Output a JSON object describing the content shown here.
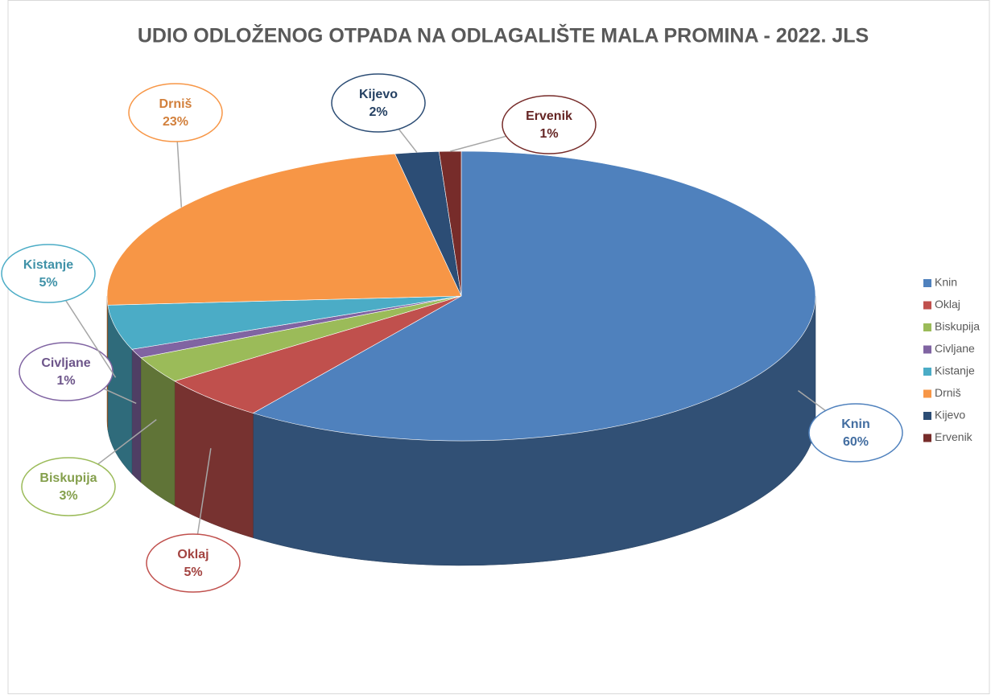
{
  "chart_data": {
    "type": "pie3d",
    "title": "UDIO ODLOŽENOG OTPADA NA ODLAGALIŠTE MALA PROMINA - 2022. JLS",
    "categories": [
      "Knin",
      "Oklaj",
      "Biskupija",
      "Civljane",
      "Kistanje",
      "Drniš",
      "Kijevo",
      "Ervenik"
    ],
    "values": [
      60,
      5,
      3,
      1,
      5,
      23,
      2,
      1
    ],
    "value_labels": [
      "60%",
      "5%",
      "3%",
      "1%",
      "5%",
      "23%",
      "2%",
      "1%"
    ],
    "colors": [
      "#4f81bd",
      "#c0504d",
      "#9bbb59",
      "#8064a2",
      "#4bacc6",
      "#f79646",
      "#2c4d75",
      "#772c2a"
    ],
    "legend": "right"
  }
}
